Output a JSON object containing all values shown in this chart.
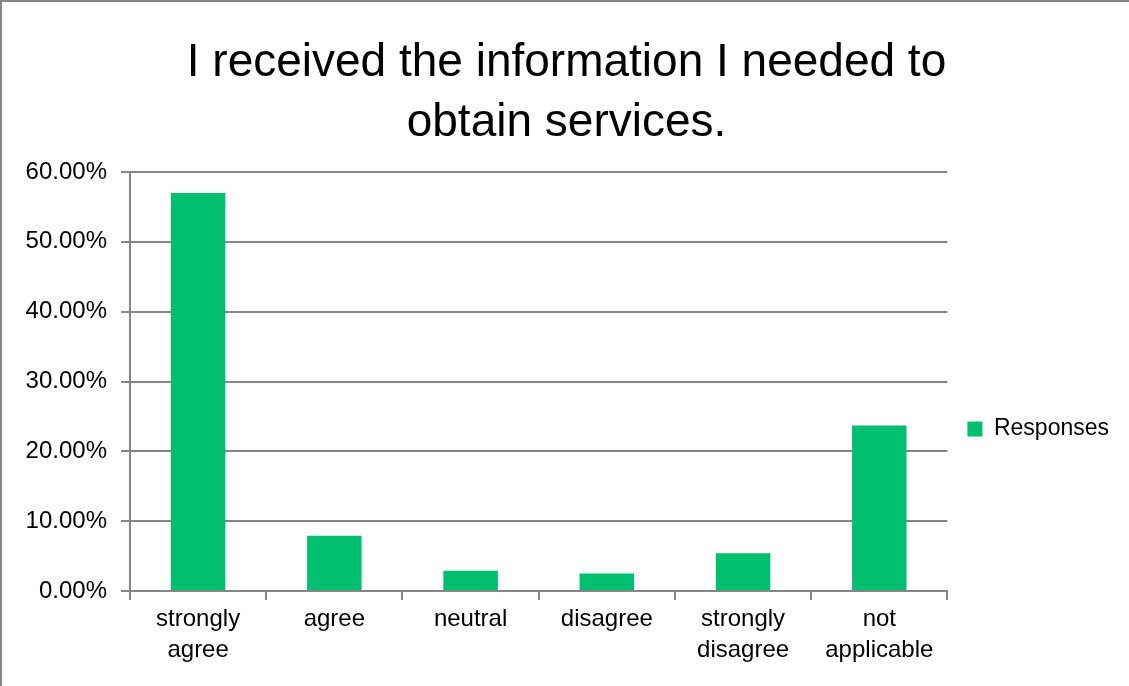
{
  "chart_data": {
    "type": "bar",
    "title": "I received the information I needed to obtain services.",
    "categories": [
      "strongly agree",
      "agree",
      "neutral",
      "disagree",
      "strongly disagree",
      "not applicable"
    ],
    "series": [
      {
        "name": "Responses",
        "color": "#00bf6f",
        "values": [
          57.0,
          7.9,
          2.9,
          2.5,
          5.4,
          23.7
        ]
      }
    ],
    "ylim": [
      0,
      60
    ],
    "yticks": [
      {
        "value": 0,
        "label": "0.00%"
      },
      {
        "value": 10,
        "label": "10.00%"
      },
      {
        "value": 20,
        "label": "20.00%"
      },
      {
        "value": 30,
        "label": "30.00%"
      },
      {
        "value": 40,
        "label": "40.00%"
      },
      {
        "value": 50,
        "label": "50.00%"
      },
      {
        "value": 60,
        "label": "60.00%"
      }
    ],
    "grid": "y",
    "legend": "right"
  }
}
